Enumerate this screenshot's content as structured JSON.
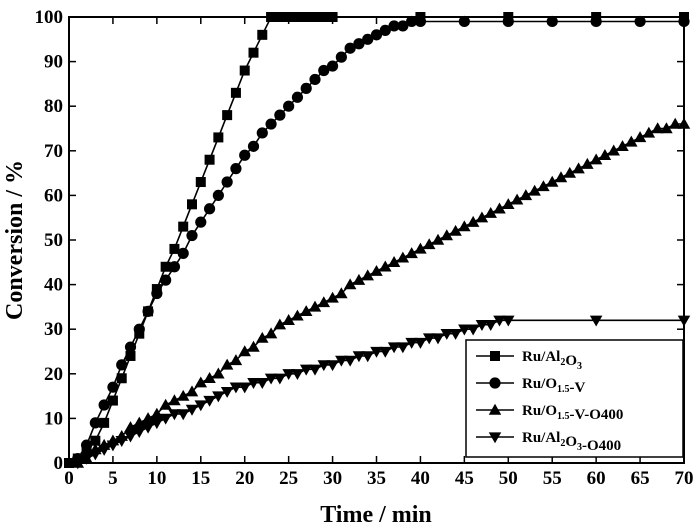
{
  "chart_data": {
    "type": "line",
    "title": "",
    "xlabel": "Time / min",
    "ylabel": "Conversion / %",
    "xlim": [
      0,
      70
    ],
    "ylim": [
      0,
      100
    ],
    "xticks": [
      0,
      5,
      10,
      15,
      20,
      25,
      30,
      35,
      40,
      45,
      50,
      55,
      60,
      65,
      70
    ],
    "yticks": [
      0,
      10,
      20,
      30,
      40,
      50,
      60,
      70,
      80,
      90,
      100
    ],
    "grid": false,
    "legend_position": "bottom-right",
    "series": [
      {
        "name": "Ru/Al2O3",
        "legend_parts": [
          [
            "Ru/Al",
            ""
          ],
          [
            "2",
            "sub"
          ],
          [
            "O",
            ""
          ],
          [
            "3",
            "sub"
          ]
        ],
        "marker": "square",
        "x": [
          0,
          1,
          2,
          3,
          4,
          5,
          6,
          7,
          8,
          9,
          10,
          11,
          12,
          13,
          14,
          15,
          16,
          17,
          18,
          19,
          20,
          21,
          22,
          23,
          24,
          25,
          26,
          27,
          28,
          29,
          30,
          40,
          50,
          60,
          70
        ],
        "y": [
          0,
          1,
          3,
          5,
          9,
          14,
          19,
          24,
          29,
          34,
          39,
          44,
          48,
          53,
          58,
          63,
          68,
          73,
          78,
          83,
          88,
          92,
          96,
          100,
          100,
          100,
          100,
          100,
          100,
          100,
          100,
          100,
          100,
          100,
          100
        ]
      },
      {
        "name": "Ru/O1.5-V",
        "legend_parts": [
          [
            "Ru/O",
            ""
          ],
          [
            "1.5",
            "sub"
          ],
          [
            "-V",
            ""
          ]
        ],
        "marker": "circle",
        "x": [
          1,
          2,
          3,
          4,
          5,
          6,
          7,
          8,
          9,
          10,
          11,
          12,
          13,
          14,
          15,
          16,
          17,
          18,
          19,
          20,
          21,
          22,
          23,
          24,
          25,
          26,
          27,
          28,
          29,
          30,
          31,
          32,
          33,
          34,
          35,
          36,
          37,
          38,
          39,
          40,
          45,
          50,
          55,
          60,
          65,
          70
        ],
        "y": [
          1,
          4,
          9,
          13,
          17,
          22,
          26,
          30,
          34,
          38,
          41,
          44,
          47,
          51,
          54,
          57,
          60,
          63,
          66,
          69,
          71,
          74,
          76,
          78,
          80,
          82,
          84,
          86,
          88,
          89,
          91,
          93,
          94,
          95,
          96,
          97,
          98,
          98,
          99,
          99,
          99,
          99,
          99,
          99,
          99,
          99
        ]
      },
      {
        "name": "Ru/O1.5-V-O400",
        "legend_parts": [
          [
            "Ru/O",
            ""
          ],
          [
            "1.5",
            "sub"
          ],
          [
            "-V-O400",
            ""
          ]
        ],
        "marker": "triangle-up",
        "x": [
          1,
          2,
          3,
          4,
          5,
          6,
          7,
          8,
          9,
          10,
          11,
          12,
          13,
          14,
          15,
          16,
          17,
          18,
          19,
          20,
          21,
          22,
          23,
          24,
          25,
          26,
          27,
          28,
          29,
          30,
          31,
          32,
          33,
          34,
          35,
          36,
          37,
          38,
          39,
          40,
          41,
          42,
          43,
          44,
          45,
          46,
          47,
          48,
          49,
          50,
          51,
          52,
          53,
          54,
          55,
          56,
          57,
          58,
          59,
          60,
          61,
          62,
          63,
          64,
          65,
          66,
          67,
          68,
          69,
          70
        ],
        "y": [
          0,
          1,
          3,
          4,
          5,
          6,
          8,
          9,
          10,
          11,
          13,
          14,
          15,
          16,
          18,
          19,
          20,
          22,
          23,
          25,
          26,
          28,
          29,
          31,
          32,
          33,
          34,
          35,
          36,
          37,
          38,
          40,
          41,
          42,
          43,
          44,
          45,
          46,
          47,
          48,
          49,
          50,
          51,
          52,
          53,
          54,
          55,
          56,
          57,
          58,
          59,
          60,
          61,
          62,
          63,
          64,
          65,
          66,
          67,
          68,
          69,
          70,
          71,
          72,
          73,
          74,
          75,
          75,
          76,
          76
        ]
      },
      {
        "name": "Ru/Al2O3-O400",
        "legend_parts": [
          [
            "Ru/Al",
            ""
          ],
          [
            "2",
            "sub"
          ],
          [
            "O",
            ""
          ],
          [
            "3",
            "sub"
          ],
          [
            "-O400",
            ""
          ]
        ],
        "marker": "triangle-down",
        "x": [
          1,
          2,
          3,
          4,
          5,
          6,
          7,
          8,
          9,
          10,
          11,
          12,
          13,
          14,
          15,
          16,
          17,
          18,
          19,
          20,
          21,
          22,
          23,
          24,
          25,
          26,
          27,
          28,
          29,
          30,
          31,
          32,
          33,
          34,
          35,
          36,
          37,
          38,
          39,
          40,
          41,
          42,
          43,
          44,
          45,
          46,
          47,
          48,
          49,
          50,
          60,
          70
        ],
        "y": [
          0,
          1,
          2,
          3,
          4,
          5,
          6,
          7,
          8,
          9,
          10,
          11,
          11,
          12,
          13,
          14,
          15,
          16,
          17,
          17,
          18,
          18,
          19,
          19,
          20,
          20,
          21,
          21,
          22,
          22,
          23,
          23,
          24,
          24,
          25,
          25,
          26,
          26,
          27,
          27,
          28,
          28,
          29,
          29,
          30,
          30,
          31,
          31,
          32,
          32,
          32,
          32
        ]
      }
    ]
  }
}
